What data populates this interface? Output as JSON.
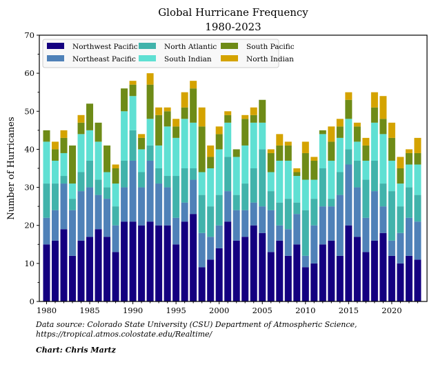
{
  "chart_data": {
    "type": "bar",
    "stacked": true,
    "title": "Global Hurricane Frequency",
    "subtitle": "1980-2023",
    "xlabel": "",
    "ylabel": "Number of Hurricanes",
    "ylim": [
      0,
      70
    ],
    "yticks": [
      0,
      10,
      20,
      30,
      40,
      50,
      60,
      70
    ],
    "xticks": [
      1980,
      1985,
      1990,
      1995,
      2000,
      2005,
      2010,
      2015,
      2020
    ],
    "grid": false,
    "legend_position": "top-left",
    "categories": [
      1980,
      1981,
      1982,
      1983,
      1984,
      1985,
      1986,
      1987,
      1988,
      1989,
      1990,
      1991,
      1992,
      1993,
      1994,
      1995,
      1996,
      1997,
      1998,
      1999,
      2000,
      2001,
      2002,
      2003,
      2004,
      2005,
      2006,
      2007,
      2008,
      2009,
      2010,
      2011,
      2012,
      2013,
      2014,
      2015,
      2016,
      2017,
      2018,
      2019,
      2020,
      2021,
      2022,
      2023
    ],
    "series": [
      {
        "name": "Northwest Pacific",
        "color": "#140080",
        "values": [
          15,
          16,
          19,
          12,
          16,
          17,
          19,
          17,
          13,
          21,
          21,
          20,
          21,
          20,
          20,
          15,
          21,
          23,
          9,
          11,
          14,
          21,
          16,
          17,
          20,
          18,
          13,
          16,
          12,
          15,
          9,
          10,
          15,
          16,
          12,
          20,
          17,
          13,
          16,
          18,
          12,
          10,
          12,
          11
        ]
      },
      {
        "name": "Northeast Pacific",
        "color": "#4f81b8",
        "values": [
          7,
          8,
          12,
          12,
          13,
          13,
          9,
          10,
          7,
          9,
          16,
          10,
          16,
          11,
          10,
          7,
          5,
          9,
          9,
          6,
          6,
          8,
          8,
          7,
          6,
          7,
          11,
          4,
          7,
          8,
          3,
          10,
          10,
          9,
          16,
          16,
          13,
          9,
          13,
          7,
          4,
          8,
          10,
          10
        ]
      },
      {
        "name": "North Atlantic",
        "color": "#41b3ab",
        "values": [
          9,
          7,
          2,
          3,
          5,
          7,
          4,
          3,
          5,
          7,
          8,
          4,
          4,
          4,
          3,
          11,
          9,
          3,
          10,
          8,
          8,
          9,
          4,
          7,
          9,
          15,
          5,
          6,
          8,
          3,
          12,
          7,
          10,
          2,
          6,
          4,
          7,
          10,
          8,
          6,
          13,
          7,
          8,
          7
        ]
      },
      {
        "name": "South Indian",
        "color": "#5fe0d3",
        "values": [
          11,
          6,
          6,
          4,
          10,
          8,
          10,
          4,
          6,
          13,
          9,
          6,
          7,
          6,
          13,
          10,
          13,
          12,
          6,
          10,
          12,
          9,
          10,
          10,
          12,
          7,
          5,
          11,
          10,
          7,
          8,
          5,
          9,
          10,
          9,
          8,
          5,
          5,
          10,
          13,
          8,
          6,
          6,
          8
        ]
      },
      {
        "name": "South Pacific",
        "color": "#6e8b17",
        "values": [
          3,
          3,
          4,
          10,
          3,
          7,
          5,
          7,
          4,
          6,
          3,
          3,
          9,
          8,
          4,
          3,
          3,
          9,
          12,
          3,
          4,
          2,
          2,
          7,
          2,
          6,
          5,
          4,
          4,
          1,
          7,
          5,
          1,
          5,
          3,
          5,
          4,
          4,
          4,
          4,
          6,
          4,
          3,
          3
        ]
      },
      {
        "name": "North Indian",
        "color": "#d4a300",
        "values": [
          0,
          2,
          2,
          0,
          2,
          0,
          0,
          0,
          1,
          0,
          1,
          1,
          3,
          2,
          1,
          2,
          4,
          2,
          5,
          3,
          2,
          1,
          0,
          1,
          2,
          0,
          1,
          3,
          1,
          1,
          3,
          1,
          0,
          4,
          2,
          2,
          1,
          2,
          4,
          6,
          4,
          3,
          1,
          4
        ]
      }
    ],
    "legend": [
      {
        "label": "Northwest Pacific",
        "color": "#140080"
      },
      {
        "label": "Northeast Pacific",
        "color": "#4f81b8"
      },
      {
        "label": "North Atlantic",
        "color": "#41b3ab"
      },
      {
        "label": "South Indian",
        "color": "#5fe0d3"
      },
      {
        "label": "South Pacific",
        "color": "#6e8b17"
      },
      {
        "label": "North Indian",
        "color": "#d4a300"
      }
    ]
  },
  "footer": {
    "source_line1": "Data source: Colorado State University (CSU) Department of Atmospheric Science,",
    "source_line2": "https://tropical.atmos.colostate.edu/Realtime/",
    "credit": "Chart: Chris Martz"
  }
}
